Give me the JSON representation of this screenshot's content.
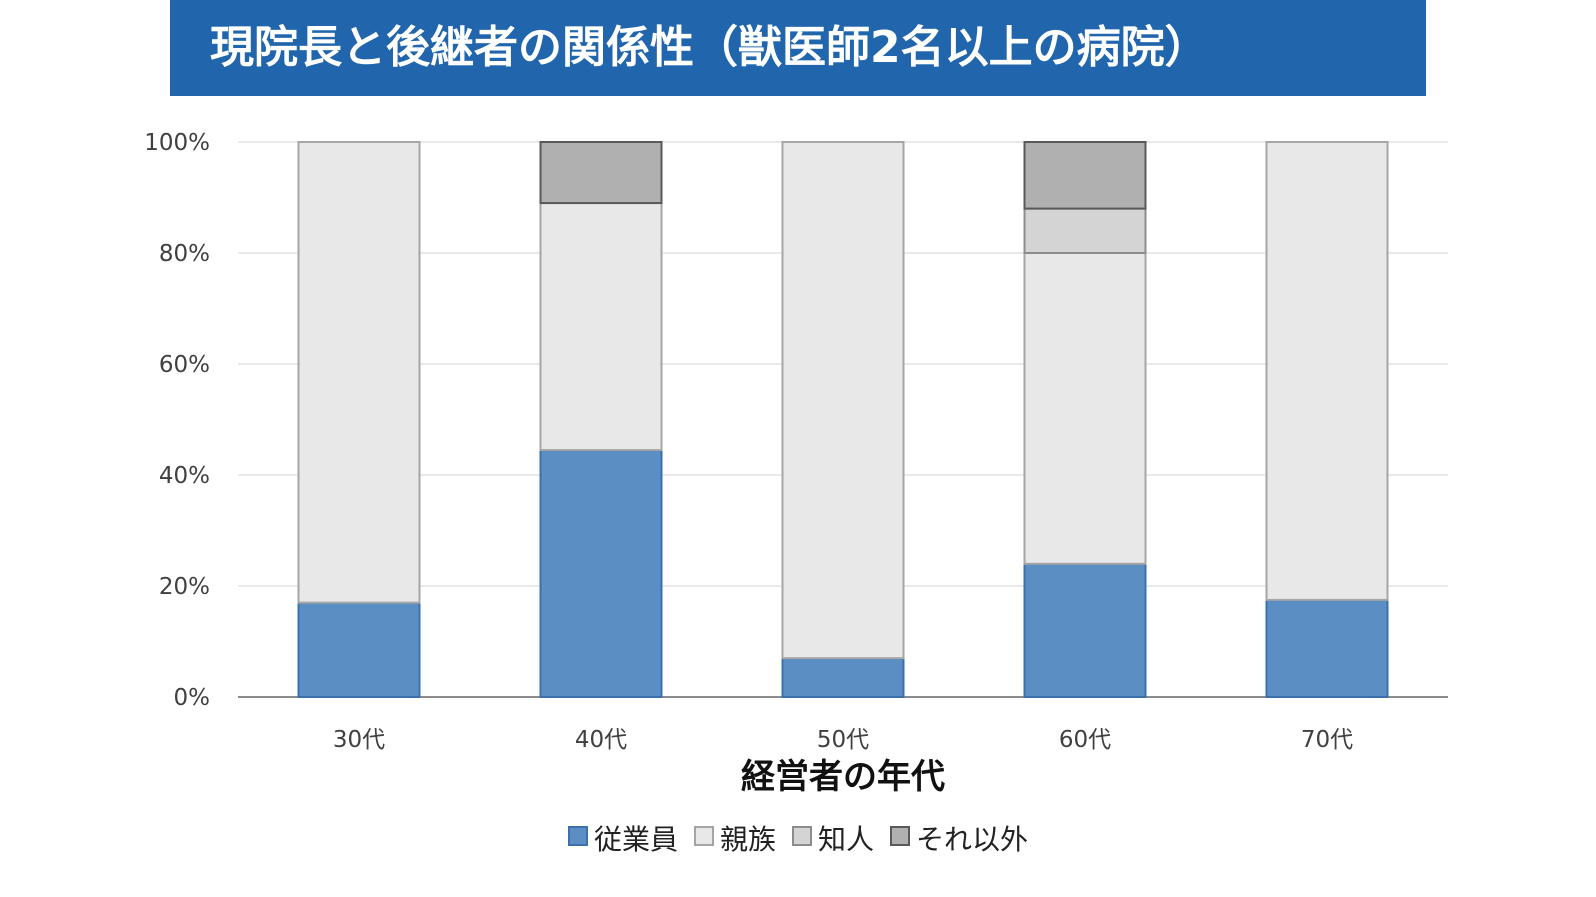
{
  "title": "現院長と後継者の関係性（獣医師2名以上の病院）",
  "chart_data": {
    "type": "bar",
    "stacked": true,
    "categories": [
      "30代",
      "40代",
      "50代",
      "60代",
      "70代"
    ],
    "series": [
      {
        "name": "従業員",
        "color": "#5b8fc4",
        "stroke": "#3b70ad",
        "values": [
          17,
          44.5,
          7,
          24,
          17.5
        ]
      },
      {
        "name": "親族",
        "color": "#e8e8e8",
        "stroke": "#a6a6a6",
        "values": [
          83,
          44.5,
          93,
          56,
          82.5
        ]
      },
      {
        "name": "知人",
        "color": "#d4d4d4",
        "stroke": "#8c8c8c",
        "values": [
          0,
          0,
          0,
          8,
          0
        ]
      },
      {
        "name": "それ以外",
        "color": "#b0b0b0",
        "stroke": "#595959",
        "values": [
          0,
          11,
          0,
          12,
          0
        ]
      }
    ],
    "xlabel": "経営者の年代",
    "ylabel": "",
    "ylim": [
      0,
      100
    ],
    "yticks": [
      "0%",
      "20%",
      "40%",
      "60%",
      "80%",
      "100%"
    ],
    "grid": true,
    "legend": "bottom"
  }
}
